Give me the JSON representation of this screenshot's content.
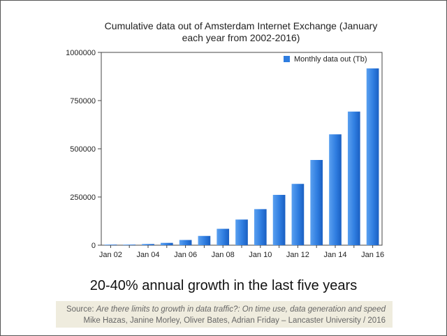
{
  "chart_data": {
    "type": "bar",
    "title_line1": "Cumulative data out of Amsterdam Internet Exchange (January",
    "title_line2": "each year from 2002-2016)",
    "categories": [
      "Jan 02",
      "Jan 03",
      "Jan 04",
      "Jan 05",
      "Jan 06",
      "Jan 07",
      "Jan 08",
      "Jan 09",
      "Jan 10",
      "Jan 11",
      "Jan 12",
      "Jan 13",
      "Jan 14",
      "Jan 15",
      "Jan 16"
    ],
    "tick_labels": [
      "Jan 02",
      "Jan 04",
      "Jan 06",
      "Jan 08",
      "Jan 10",
      "Jan 12",
      "Jan 14",
      "Jan 16"
    ],
    "series": [
      {
        "name": "Monthly data out (Tb)",
        "values": [
          1000,
          2000,
          6000,
          12000,
          27000,
          48000,
          85000,
          133000,
          187000,
          261000,
          318000,
          442000,
          575000,
          693000,
          917000
        ]
      }
    ],
    "yticks": [
      "0",
      "250000",
      "500000",
      "750000",
      "1000000"
    ],
    "ytick_values": [
      0,
      250000,
      500000,
      750000,
      1000000
    ],
    "ylim": [
      0,
      1000000
    ],
    "legend_position": "top-right",
    "grid": false,
    "bar_color": "#2f7de0"
  },
  "subtitle": "20-40% annual growth in the last five years",
  "source": {
    "prefix": "Source: ",
    "title": "Are there limits to growth in data traffic?: On time use, data generation and speed",
    "authors": "Mike Hazas, Janine Morley, Oliver Bates, Adrian Friday – Lancaster University / 2016"
  }
}
